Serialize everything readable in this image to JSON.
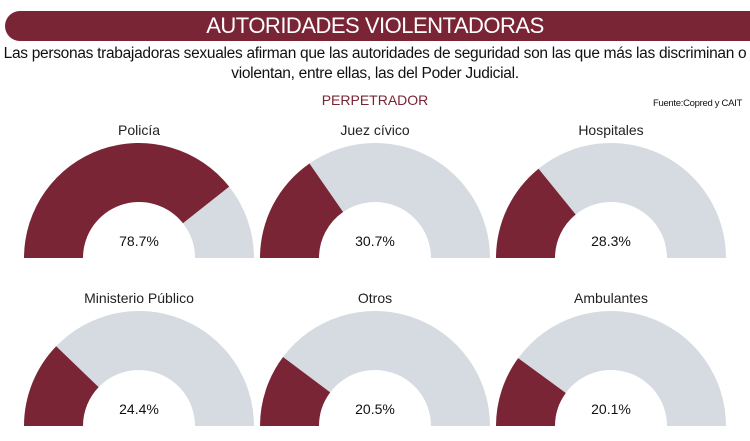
{
  "title": "AUTORIDADES VIOLENTADORAS",
  "subtitle": "Las personas trabajadoras sexuales afirman que las autoridades de seguridad son las que más las discriminan o violentan, entre ellas, las del Poder Judicial.",
  "source": "Fuente:Copred y CAIT",
  "chart_data": {
    "type": "gauge",
    "title": "PERPETRADOR",
    "unit": "%",
    "max": 100,
    "categories": [
      "Policía",
      "Juez cívico",
      "Hospitales",
      "Ministerio Público",
      "Otros",
      "Ambulantes"
    ],
    "values": [
      78.7,
      30.7,
      28.3,
      24.4,
      20.5,
      20.1
    ],
    "labels": [
      "78.7%",
      "30.7%",
      "28.3%",
      "24.4%",
      "20.5%",
      "20.1%"
    ],
    "colors": {
      "fill": "#7a2535",
      "track": "#d5dbe0"
    }
  }
}
